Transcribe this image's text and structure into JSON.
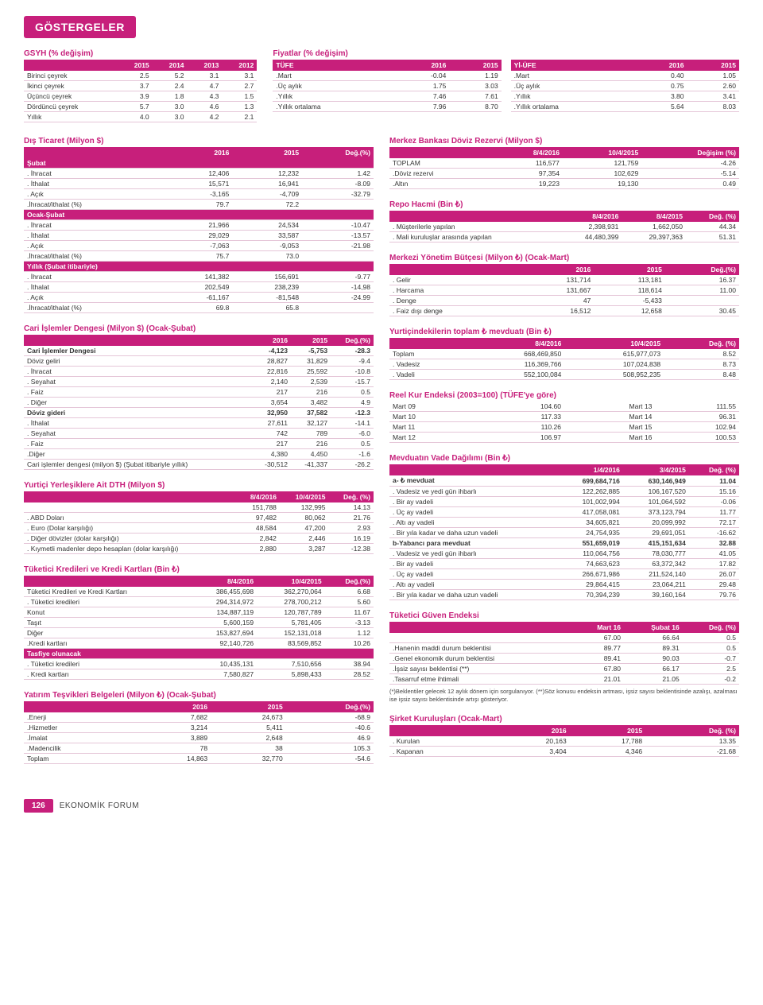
{
  "title_badge": "GÖSTERGELER",
  "page_number": "126",
  "footer_title": "EKONOMİK FORUM",
  "gsyh": {
    "title": "GSYH (% değişim)",
    "headers": [
      "",
      "2015",
      "2014",
      "2013",
      "2012"
    ],
    "rows": [
      [
        "Birinci çeyrek",
        "2.5",
        "5.2",
        "3.1",
        "3.1"
      ],
      [
        "İkinci çeyrek",
        "3.7",
        "2.4",
        "4.7",
        "2.7"
      ],
      [
        "Üçüncü çeyrek",
        "3.9",
        "1.8",
        "4.3",
        "1.5"
      ],
      [
        "Dördüncü çeyrek",
        "5.7",
        "3.0",
        "4.6",
        "1.3"
      ],
      [
        "Yıllık",
        "4.0",
        "3.0",
        "4.2",
        "2.1"
      ]
    ]
  },
  "fiyatlar": {
    "title": "Fiyatlar (% değişim)",
    "tufe": {
      "headers": [
        "TÜFE",
        "2016",
        "2015"
      ],
      "rows": [
        [
          ".Mart",
          "-0.04",
          "1.19"
        ],
        [
          ".Üç aylık",
          "1.75",
          "3.03"
        ],
        [
          ".Yıllık",
          "7.46",
          "7.61"
        ],
        [
          ".Yıllık ortalama",
          "7.96",
          "8.70"
        ]
      ]
    },
    "yiufe": {
      "headers": [
        "Yİ-ÜFE",
        "2016",
        "2015"
      ],
      "rows": [
        [
          ".Mart",
          "0.40",
          "1.05"
        ],
        [
          ".Üç aylık",
          "0.75",
          "2.60"
        ],
        [
          ".Yıllık",
          "3.80",
          "3.41"
        ],
        [
          ".Yıllık ortalama",
          "5.64",
          "8.03"
        ]
      ]
    }
  },
  "dis_ticaret": {
    "title": "Dış Ticaret (Milyon $)",
    "headers": [
      "",
      "2016",
      "2015",
      "Değ.(%)"
    ],
    "groups": [
      {
        "group": "Şubat",
        "rows": [
          [
            ". İhracat",
            "12,406",
            "12,232",
            "1.42"
          ],
          [
            ". İthalat",
            "15,571",
            "16,941",
            "-8.09"
          ],
          [
            ". Açık",
            "-3,165",
            "-4,709",
            "-32.79"
          ],
          [
            ".İhracat/ithalat (%)",
            "79.7",
            "72.2",
            ""
          ]
        ]
      },
      {
        "group": "Ocak-Şubat",
        "rows": [
          [
            ". İhracat",
            "21,966",
            "24,534",
            "-10.47"
          ],
          [
            ". İthalat",
            "29,029",
            "33,587",
            "-13.57"
          ],
          [
            ". Açık",
            "-7,063",
            "-9,053",
            "-21.98"
          ],
          [
            ".İhracat/ithalat (%)",
            "75.7",
            "73.0",
            ""
          ]
        ]
      },
      {
        "group": "Yıllık (Şubat itibariyle)",
        "rows": [
          [
            ". İhracat",
            "141,382",
            "156,691",
            "-9.77"
          ],
          [
            ". İthalat",
            "202,549",
            "238,239",
            "-14,98"
          ],
          [
            ". Açık",
            "-61,167",
            "-81,548",
            "-24.99"
          ],
          [
            ".İhracat/ithalat (%)",
            "69.8",
            "65.8",
            ""
          ]
        ]
      }
    ]
  },
  "cari_islemler": {
    "title": "Cari İşlemler Dengesi (Milyon $) (Ocak-Şubat)",
    "headers": [
      "",
      "2016",
      "2015",
      "Değ.(%)"
    ],
    "groups": [
      {
        "rows": [
          [
            "Cari İşlemler Dengesi",
            "-4,123",
            "-5,753",
            "-28.3"
          ]
        ],
        "bold": true
      },
      {
        "rows": [
          [
            "Döviz geliri",
            "28,827",
            "31,829",
            "-9.4"
          ],
          [
            ". İhracat",
            "22,816",
            "25,592",
            "-10.8"
          ],
          [
            ". Seyahat",
            "2,140",
            "2,539",
            "-15.7"
          ],
          [
            ". Faiz",
            "217",
            "216",
            "0.5"
          ],
          [
            ". Diğer",
            "3,654",
            "3,482",
            "4.9"
          ]
        ]
      },
      {
        "rows": [
          [
            "Döviz gideri",
            "32,950",
            "37,582",
            "-12.3"
          ]
        ],
        "bold": true
      },
      {
        "rows": [
          [
            ". İthalat",
            "27,611",
            "32,127",
            "-14.1"
          ],
          [
            ". Seyahat",
            "742",
            "789",
            "-6.0"
          ],
          [
            ". Faiz",
            "217",
            "216",
            "0.5"
          ],
          [
            ".Diğer",
            "4,380",
            "4,450",
            "-1.6"
          ],
          [
            "Cari işlemler dengesi (milyon $) (Şubat itibariyle yıllık)",
            "-30,512",
            "-41,337",
            "-26.2"
          ]
        ]
      }
    ]
  },
  "dth": {
    "title": "Yurtiçi Yerleşiklere Ait DTH (Milyon $)",
    "headers": [
      "",
      "8/4/2016",
      "10/4/2015",
      "Değ. (%)"
    ],
    "rows": [
      [
        "",
        "151,788",
        "132,995",
        "14.13"
      ],
      [
        ". ABD Doları",
        "97,482",
        "80,062",
        "21.76"
      ],
      [
        ". Euro (Dolar karşılığı)",
        "48,584",
        "47,200",
        "2.93"
      ],
      [
        ". Diğer dövizler (dolar karşılığı)",
        "2,842",
        "2,446",
        "16.19"
      ],
      [
        ". Kıymetli madenler depo hesapları (dolar karşılığı)",
        "2,880",
        "3,287",
        "-12.38"
      ]
    ]
  },
  "tuketici_kredi": {
    "title": "Tüketici Kredileri ve Kredi Kartları (Bin ₺)",
    "headers": [
      "",
      "8/4/2016",
      "10/4/2015",
      "Değ.(%)"
    ],
    "rows": [
      [
        "Tüketici Kredileri ve Kredi Kartları",
        "386,455,698",
        "362,270,064",
        "6.68"
      ],
      [
        ". Tüketici kredileri",
        "294,314,972",
        "278,700,212",
        "5.60"
      ],
      [
        "  Konut",
        "134,887,119",
        "120,787,789",
        "11.67"
      ],
      [
        "  Taşıt",
        "5,600,159",
        "5,781,405",
        "-3.13"
      ],
      [
        "  Diğer",
        "153,827,694",
        "152,131,018",
        "1.12"
      ],
      [
        ".Kredi kartları",
        "92,140,726",
        "83,569,852",
        "10.26"
      ]
    ],
    "group2_label": "Tasfiye olunacak",
    "rows2": [
      [
        ". Tüketici kredileri",
        "10,435,131",
        "7,510,656",
        "38.94"
      ],
      [
        ". Kredi kartları",
        "7,580,827",
        "5,898,433",
        "28.52"
      ]
    ]
  },
  "yatirim_tesvik": {
    "title": "Yatırım Teşvikleri Belgeleri (Milyon ₺) (Ocak-Şubat)",
    "headers": [
      "",
      "2016",
      "2015",
      "Değ.(%)"
    ],
    "rows": [
      [
        ".Enerji",
        "7,682",
        "24,673",
        "-68.9"
      ],
      [
        ".Hizmetler",
        "3,214",
        "5,411",
        "-40.6"
      ],
      [
        ".İmalat",
        "3,889",
        "2,648",
        "46.9"
      ],
      [
        ".Madencilik",
        "78",
        "38",
        "105.3"
      ],
      [
        "Toplam",
        "14,863",
        "32,770",
        "-54.6"
      ]
    ]
  },
  "merkez_rezerv": {
    "title": "Merkez Bankası Döviz Rezervi (Milyon $)",
    "headers": [
      "",
      "8/4/2016",
      "10/4/2015",
      "Değişim (%)"
    ],
    "rows": [
      [
        "TOPLAM",
        "116,577",
        "121,759",
        "-4.26"
      ],
      [
        ".Döviz rezervi",
        "97,354",
        "102,629",
        "-5.14"
      ],
      [
        ".Altın",
        "19,223",
        "19,130",
        "0.49"
      ]
    ]
  },
  "repo": {
    "title": "Repo Hacmi (Bin ₺)",
    "headers": [
      "",
      "8/4/2016",
      "8/4/2015",
      "Değ. (%)"
    ],
    "rows": [
      [
        ". Müşterilerle yapılan",
        "2,398,931",
        "1,662,050",
        "44.34"
      ],
      [
        ". Mali kuruluşlar arasında yapılan",
        "44,480,399",
        "29,397,363",
        "51.31"
      ]
    ]
  },
  "butce": {
    "title": "Merkezi Yönetim Bütçesi (Milyon ₺) (Ocak-Mart)",
    "headers": [
      "",
      "2016",
      "2015",
      "Değ.(%)"
    ],
    "rows": [
      [
        ". Gelir",
        "131,714",
        "113,181",
        "16.37"
      ],
      [
        ". Harcama",
        "131,667",
        "118,614",
        "11.00"
      ],
      [
        ". Denge",
        "47",
        "-5,433",
        ""
      ],
      [
        ". Faiz dışı denge",
        "16,512",
        "12,658",
        "30.45"
      ]
    ]
  },
  "mevduat_toplam": {
    "title": "Yurtiçindekilerin toplam ₺ mevduatı (Bin ₺)",
    "headers": [
      "",
      "8/4/2016",
      "10/4/2015",
      "Değ. (%)"
    ],
    "rows": [
      [
        "Toplam",
        "668,469,850",
        "615,977,073",
        "8.52"
      ],
      [
        ". Vadesiz",
        "116,369,766",
        "107,024,838",
        "8.73"
      ],
      [
        ". Vadeli",
        "552,100,084",
        "508,952,235",
        "8.48"
      ]
    ]
  },
  "reel_kur": {
    "title": "Reel Kur Endeksi (2003=100) (TÜFE'ye göre)",
    "rows": [
      [
        "Mart 09",
        "104.60",
        "Mart 13",
        "111.55"
      ],
      [
        "Mart 10",
        "117.33",
        "Mart 14",
        "96.31"
      ],
      [
        "Mart 11",
        "110.26",
        "Mart 15",
        "102.94"
      ],
      [
        "Mart 12",
        "106.97",
        "Mart 16",
        "100.53"
      ]
    ]
  },
  "mevduat_vade": {
    "title": "Mevduatın Vade Dağılımı (Bin ₺)",
    "headers": [
      "",
      "1/4/2016",
      "3/4/2015",
      "Değ. (%)"
    ],
    "groups": [
      {
        "rows": [
          [
            "a- ₺ mevduat",
            "699,684,716",
            "630,146,949",
            "11.04"
          ]
        ],
        "bold": true
      },
      {
        "rows": [
          [
            ". Vadesiz ve yedi gün ihbarlı",
            "122,262,885",
            "106,167,520",
            "15.16"
          ],
          [
            ". Bir ay vadeli",
            "101,002,994",
            "101,064,592",
            "-0.06"
          ],
          [
            ". Üç ay vadeli",
            "417,058,081",
            "373,123,794",
            "11.77"
          ],
          [
            ". Altı ay vadeli",
            "34,605,821",
            "20,099,992",
            "72.17"
          ],
          [
            ". Bir yıla kadar ve daha uzun vadeli",
            "24,754,935",
            "29,691,051",
            "-16.62"
          ]
        ]
      },
      {
        "rows": [
          [
            "b-Yabancı para mevduat",
            "551,659,019",
            "415,151,634",
            "32.88"
          ]
        ],
        "bold": true
      },
      {
        "rows": [
          [
            ". Vadesiz ve yedi gün ihbarlı",
            "110,064,756",
            "78,030,777",
            "41.05"
          ],
          [
            ". Bir ay vadeli",
            "74,663,623",
            "63,372,342",
            "17.82"
          ],
          [
            ". Üç ay vadeli",
            "266,671,986",
            "211,524,140",
            "26.07"
          ],
          [
            ". Altı ay vadeli",
            "29,864,415",
            "23,064,211",
            "29.48"
          ],
          [
            ". Bir yıla kadar ve daha uzun vadeli",
            "70,394,239",
            "39,160,164",
            "79.76"
          ]
        ]
      }
    ]
  },
  "tuketici_guven": {
    "title": "Tüketici Güven Endeksi",
    "headers": [
      "",
      "Mart 16",
      "Şubat 16",
      "Değ. (%)"
    ],
    "rows": [
      [
        "",
        "67.00",
        "66.64",
        "0.5"
      ],
      [
        ".Hanenin maddi durum beklentisi",
        "89.77",
        "89.31",
        "0.5"
      ],
      [
        ".Genel ekonomik durum beklentisi",
        "89.41",
        "90.03",
        "-0.7"
      ],
      [
        ".İşsiz sayısı beklentisi (**)",
        "67.80",
        "66.17",
        "2.5"
      ],
      [
        ".Tasarruf etme ihtimali",
        "21.01",
        "21.05",
        "-0.2"
      ]
    ],
    "footnote": "(*)Beklentiler gelecek 12 aylık dönem için sorgulanıyor.\n(**)Söz konusu endeksin artması, işsiz sayısı beklentisinde azalışı, azalması ise işsiz sayısı beklentisinde artışı gösteriyor."
  },
  "sirket": {
    "title": "Şirket Kuruluşları (Ocak-Mart)",
    "headers": [
      "",
      "2016",
      "2015",
      "Değ. (%)"
    ],
    "rows": [
      [
        ". Kurulan",
        "20,163",
        "17,788",
        "13.35"
      ],
      [
        ". Kapanan",
        "3,404",
        "4,346",
        "-21.68"
      ]
    ]
  }
}
